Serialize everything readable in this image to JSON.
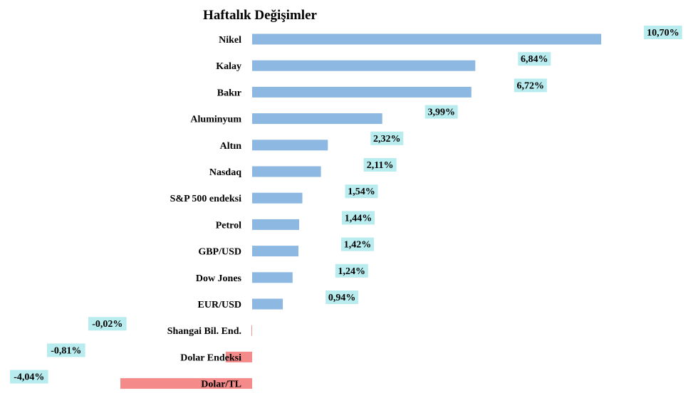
{
  "chart_data": {
    "type": "bar",
    "orientation": "horizontal",
    "title": "Haftalık Değişimler",
    "xlabel": "",
    "ylabel": "",
    "grid": false,
    "categories": [
      "Nikel",
      "Kalay",
      "Bakır",
      "Aluminyum",
      "Altın",
      "Nasdaq",
      "S&P 500 endeksi",
      "Petrol",
      "GBP/USD",
      "Dow Jones",
      "EUR/USD",
      "Shangai Bil. End.",
      "Dolar Endeksi",
      "Dolar/TL"
    ],
    "values": [
      10.7,
      6.84,
      6.72,
      3.99,
      2.32,
      2.11,
      1.54,
      1.44,
      1.42,
      1.24,
      0.94,
      -0.02,
      -0.81,
      -4.04
    ],
    "value_labels": [
      "10,70%",
      "6,84%",
      "6,72%",
      "3,99%",
      "2,32%",
      "2,11%",
      "1,54%",
      "1,44%",
      "1,42%",
      "1,24%",
      "0,94%",
      "-0,02%",
      "-0,81%",
      "-4,04%"
    ],
    "colors": {
      "positive": "#8cb8e2",
      "negative": "#f58a8a",
      "label_bg": "#b9ecef"
    }
  }
}
